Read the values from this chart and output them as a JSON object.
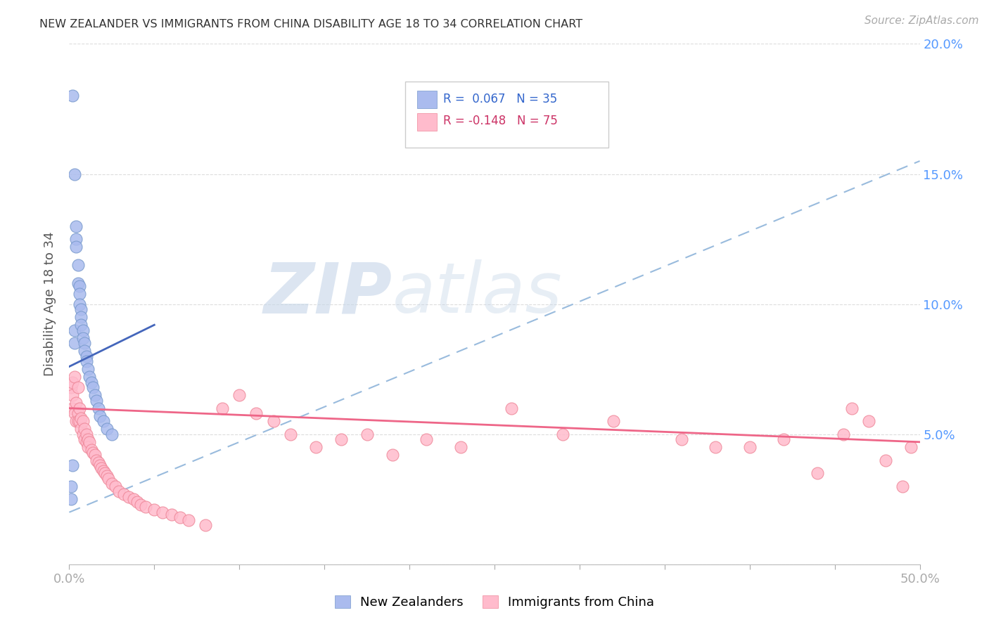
{
  "title": "NEW ZEALANDER VS IMMIGRANTS FROM CHINA DISABILITY AGE 18 TO 34 CORRELATION CHART",
  "source_text": "Source: ZipAtlas.com",
  "ylabel": "Disability Age 18 to 34",
  "watermark_zip": "ZIP",
  "watermark_atlas": "atlas",
  "xlim": [
    0.0,
    0.5
  ],
  "ylim": [
    0.0,
    0.2
  ],
  "blue_color": "#aabbee",
  "blue_edge_color": "#7799cc",
  "pink_color": "#ffbbcc",
  "pink_edge_color": "#ee8899",
  "blue_line_color": "#4466bb",
  "pink_line_color": "#ee6688",
  "dashed_line_color": "#99bbdd",
  "legend_label_blue": "New Zealanders",
  "legend_label_pink": "Immigrants from China",
  "nz_x": [
    0.001,
    0.001,
    0.002,
    0.002,
    0.003,
    0.003,
    0.003,
    0.004,
    0.004,
    0.004,
    0.005,
    0.005,
    0.006,
    0.006,
    0.006,
    0.007,
    0.007,
    0.007,
    0.008,
    0.008,
    0.009,
    0.009,
    0.01,
    0.01,
    0.011,
    0.012,
    0.013,
    0.014,
    0.015,
    0.016,
    0.017,
    0.018,
    0.02,
    0.022,
    0.025
  ],
  "nz_y": [
    0.03,
    0.025,
    0.18,
    0.038,
    0.15,
    0.09,
    0.085,
    0.13,
    0.125,
    0.122,
    0.115,
    0.108,
    0.107,
    0.104,
    0.1,
    0.098,
    0.095,
    0.092,
    0.09,
    0.087,
    0.085,
    0.082,
    0.08,
    0.078,
    0.075,
    0.072,
    0.07,
    0.068,
    0.065,
    0.063,
    0.06,
    0.057,
    0.055,
    0.052,
    0.05
  ],
  "china_x": [
    0.001,
    0.002,
    0.002,
    0.002,
    0.003,
    0.003,
    0.004,
    0.004,
    0.005,
    0.005,
    0.005,
    0.006,
    0.006,
    0.007,
    0.007,
    0.008,
    0.008,
    0.009,
    0.009,
    0.01,
    0.01,
    0.011,
    0.011,
    0.012,
    0.013,
    0.014,
    0.015,
    0.016,
    0.017,
    0.018,
    0.019,
    0.02,
    0.021,
    0.022,
    0.023,
    0.025,
    0.027,
    0.029,
    0.032,
    0.035,
    0.038,
    0.04,
    0.042,
    0.045,
    0.05,
    0.055,
    0.06,
    0.065,
    0.07,
    0.08,
    0.09,
    0.1,
    0.11,
    0.12,
    0.13,
    0.145,
    0.16,
    0.175,
    0.19,
    0.21,
    0.23,
    0.26,
    0.29,
    0.32,
    0.36,
    0.38,
    0.4,
    0.42,
    0.44,
    0.455,
    0.46,
    0.47,
    0.48,
    0.49,
    0.495
  ],
  "china_y": [
    0.068,
    0.07,
    0.065,
    0.06,
    0.072,
    0.058,
    0.062,
    0.055,
    0.068,
    0.058,
    0.055,
    0.06,
    0.055,
    0.056,
    0.052,
    0.055,
    0.05,
    0.052,
    0.048,
    0.05,
    0.047,
    0.048,
    0.045,
    0.047,
    0.044,
    0.043,
    0.042,
    0.04,
    0.039,
    0.038,
    0.037,
    0.036,
    0.035,
    0.034,
    0.033,
    0.031,
    0.03,
    0.028,
    0.027,
    0.026,
    0.025,
    0.024,
    0.023,
    0.022,
    0.021,
    0.02,
    0.019,
    0.018,
    0.017,
    0.015,
    0.06,
    0.065,
    0.058,
    0.055,
    0.05,
    0.045,
    0.048,
    0.05,
    0.042,
    0.048,
    0.045,
    0.06,
    0.05,
    0.055,
    0.048,
    0.045,
    0.045,
    0.048,
    0.035,
    0.05,
    0.06,
    0.055,
    0.04,
    0.03,
    0.045
  ],
  "nz_line_x0": 0.0,
  "nz_line_x1": 0.05,
  "nz_line_y0": 0.076,
  "nz_line_y1": 0.092,
  "china_line_x0": 0.0,
  "china_line_x1": 0.5,
  "china_line_y0": 0.06,
  "china_line_y1": 0.047,
  "dash_line_x0": 0.0,
  "dash_line_x1": 0.5,
  "dash_line_y0": 0.02,
  "dash_line_y1": 0.155
}
